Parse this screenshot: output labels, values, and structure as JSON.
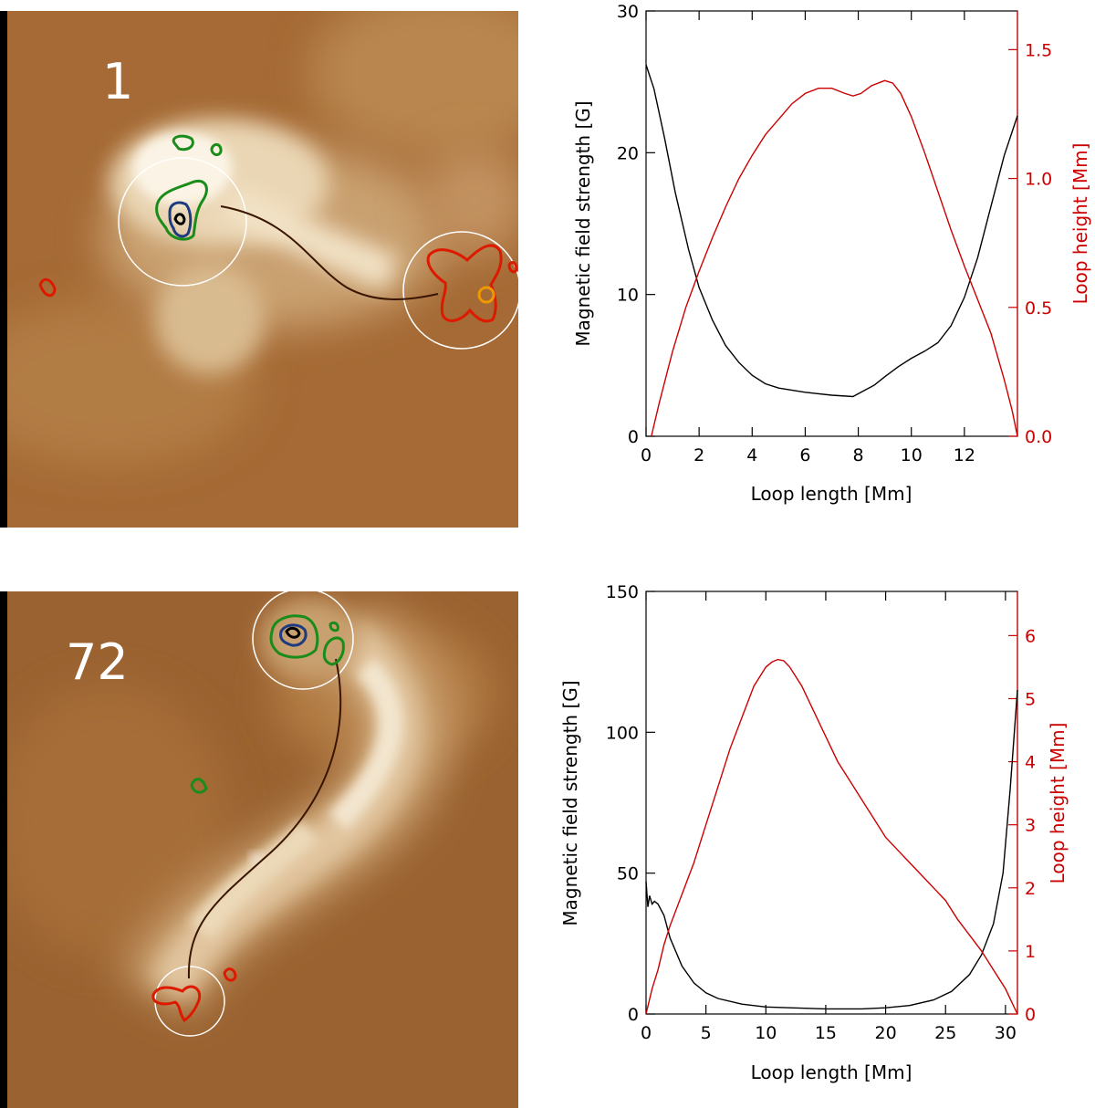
{
  "images": [
    {
      "label": "1"
    },
    {
      "label": "72"
    }
  ],
  "colors": {
    "field_line": "#000000",
    "loop_height": "#cc0000",
    "frame_background": "#9a6230",
    "circle": "#ffffff",
    "contour_positive": "#1a8c1a",
    "contour_negative": "#dd1a00"
  },
  "chart_data": [
    {
      "type": "line",
      "xlabel": "Loop length [Mm]",
      "ylabel": "Magnetic field strength [G]",
      "y2label": "Loop height [Mm]",
      "xlim": [
        0,
        14
      ],
      "ylim": [
        0,
        30
      ],
      "y2lim": [
        0,
        1.65
      ],
      "xticks": [
        0,
        2,
        4,
        6,
        8,
        10,
        12
      ],
      "yticks": [
        0,
        10,
        20,
        30
      ],
      "y2ticks": [
        0.0,
        0.5,
        1.0,
        1.5
      ],
      "y2tick_labels": [
        "0.0",
        "0.5",
        "1.0",
        "1.5"
      ],
      "series": [
        {
          "axis": "left",
          "color": "#000000",
          "x": [
            0,
            0.3,
            0.7,
            1.1,
            1.6,
            2.0,
            2.5,
            3.0,
            3.5,
            4.0,
            4.5,
            5.0,
            6.0,
            7.0,
            7.8,
            8.2,
            8.6,
            9.0,
            9.5,
            10.0,
            10.5,
            11.0,
            11.5,
            12.0,
            12.5,
            13.0,
            13.5,
            14.0
          ],
          "y": [
            26.2,
            24.5,
            21.0,
            17.2,
            13.2,
            10.5,
            8.2,
            6.4,
            5.2,
            4.3,
            3.7,
            3.4,
            3.1,
            2.9,
            2.8,
            3.2,
            3.6,
            4.2,
            4.9,
            5.5,
            6.0,
            6.6,
            7.8,
            9.8,
            12.6,
            16.2,
            19.8,
            22.6
          ]
        },
        {
          "axis": "right",
          "color": "#cc0000",
          "x": [
            0.2,
            0.5,
            1.0,
            1.5,
            2.0,
            2.5,
            3.0,
            3.5,
            4.0,
            4.5,
            5.0,
            5.5,
            6.0,
            6.5,
            7.0,
            7.5,
            7.8,
            8.1,
            8.5,
            9.0,
            9.3,
            9.6,
            10.0,
            10.5,
            11.0,
            11.5,
            12.0,
            12.5,
            13.0,
            13.5,
            13.8,
            14.0
          ],
          "y": [
            0.0,
            0.13,
            0.33,
            0.5,
            0.64,
            0.77,
            0.89,
            1.0,
            1.09,
            1.17,
            1.23,
            1.29,
            1.33,
            1.35,
            1.35,
            1.33,
            1.32,
            1.33,
            1.36,
            1.38,
            1.37,
            1.33,
            1.24,
            1.1,
            0.95,
            0.8,
            0.66,
            0.53,
            0.4,
            0.22,
            0.1,
            0.0
          ]
        }
      ]
    },
    {
      "type": "line",
      "xlabel": "Loop length [Mm]",
      "ylabel": "Magnetic field strength [G]",
      "y2label": "Loop height [Mm]",
      "xlim": [
        0,
        31
      ],
      "ylim": [
        0,
        150
      ],
      "y2lim": [
        0,
        6.7
      ],
      "xticks": [
        0,
        5,
        10,
        15,
        20,
        25,
        30
      ],
      "yticks": [
        0,
        50,
        100,
        150
      ],
      "y2ticks": [
        0,
        1,
        2,
        3,
        4,
        5,
        6
      ],
      "y2tick_labels": [
        "0",
        "1",
        "2",
        "3",
        "4",
        "5",
        "6"
      ],
      "series": [
        {
          "axis": "left",
          "color": "#000000",
          "x": [
            0,
            0.15,
            0.3,
            0.5,
            0.7,
            1.0,
            1.5,
            2.0,
            3.0,
            4.0,
            5.0,
            6.0,
            8.0,
            10.0,
            12.0,
            15.0,
            18.0,
            20.0,
            22.0,
            24.0,
            25.5,
            27.0,
            28.0,
            29.0,
            29.8,
            30.4,
            31.0
          ],
          "y": [
            47,
            38,
            42,
            39,
            40,
            39,
            35,
            27,
            17,
            11,
            7.5,
            5.5,
            3.5,
            2.5,
            2.2,
            1.8,
            1.8,
            2.2,
            3.0,
            5.0,
            8.0,
            14,
            21,
            32,
            50,
            80,
            115
          ]
        },
        {
          "axis": "right",
          "color": "#cc0000",
          "x": [
            0,
            0.5,
            1.0,
            1.5,
            2,
            3,
            4,
            5,
            6,
            7,
            8,
            9,
            10,
            10.5,
            11,
            11.5,
            12,
            13,
            14,
            15,
            16,
            17,
            18,
            19,
            20,
            21,
            22,
            23,
            24,
            25,
            26,
            27,
            28,
            29,
            30,
            30.5,
            31
          ],
          "y": [
            0,
            0.4,
            0.7,
            1.1,
            1.4,
            1.9,
            2.4,
            3.0,
            3.6,
            4.2,
            4.7,
            5.2,
            5.5,
            5.58,
            5.62,
            5.6,
            5.5,
            5.2,
            4.8,
            4.4,
            4.0,
            3.7,
            3.4,
            3.1,
            2.8,
            2.6,
            2.4,
            2.2,
            2.0,
            1.8,
            1.5,
            1.25,
            1.0,
            0.7,
            0.4,
            0.2,
            0
          ]
        }
      ]
    }
  ]
}
